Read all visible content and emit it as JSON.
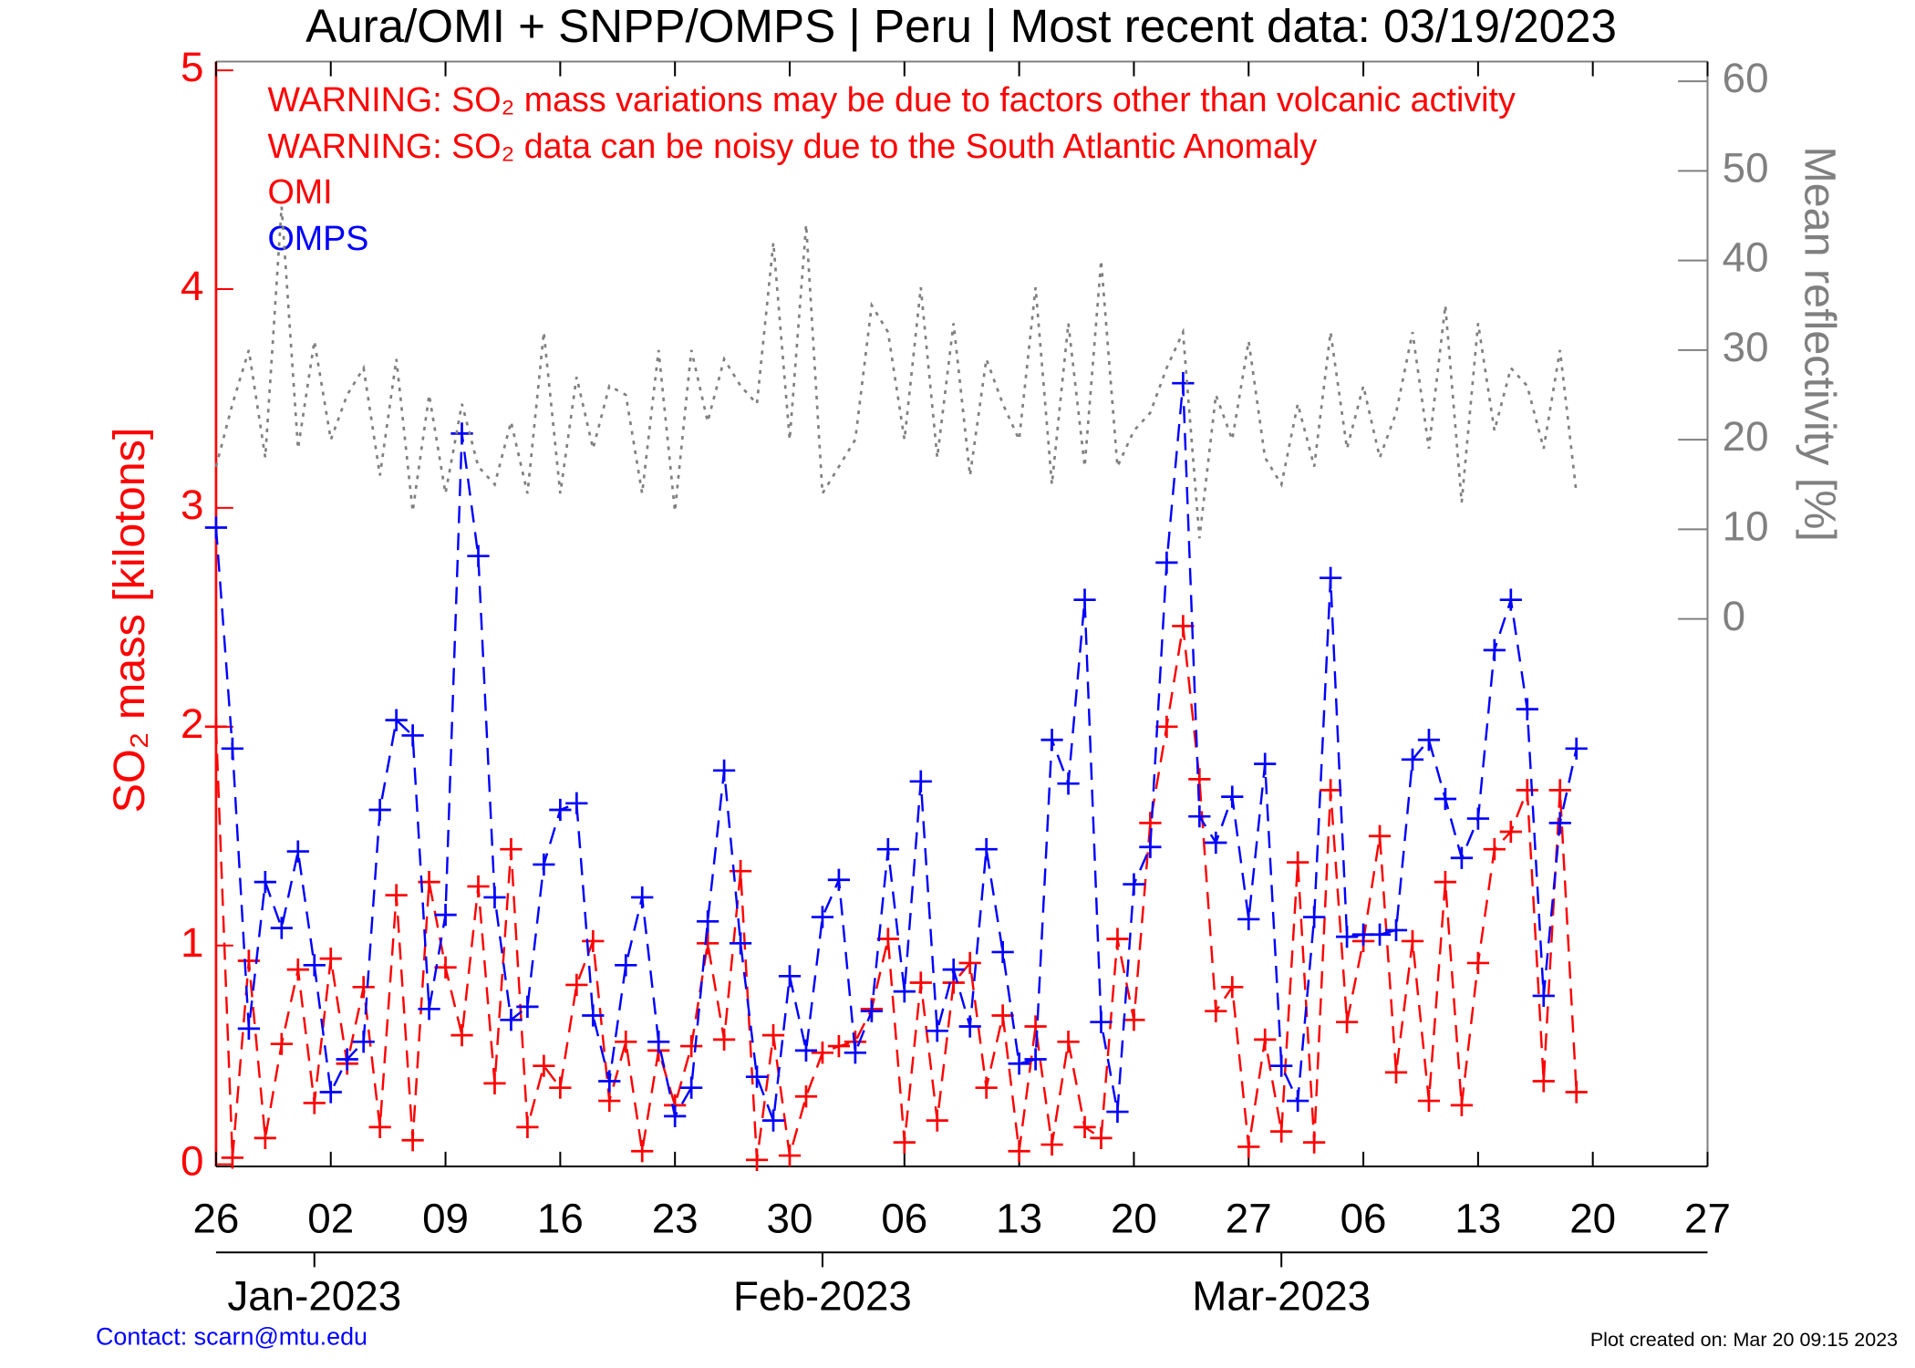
{
  "chart_data": {
    "type": "line",
    "title": "Aura/OMI + SNPP/OMPS | Peru | Most recent data: 03/19/2023",
    "warnings": [
      "WARNING: SO₂ mass variations may be due to factors other than volcanic activity",
      "WARNING: SO₂ data can be noisy due to the South Atlantic Anomaly"
    ],
    "y_label": "SO₂ mass [kilotons]",
    "y2_label": "Mean reflectivity [%]",
    "contact": "Contact: scarn@mtu.edu",
    "created": "Plot created on: Mar 20 09:15 2023",
    "x": [
      "2022-12-26",
      "2022-12-27",
      "2022-12-28",
      "2022-12-29",
      "2022-12-30",
      "2022-12-31",
      "2023-01-01",
      "2023-01-02",
      "2023-01-03",
      "2023-01-04",
      "2023-01-05",
      "2023-01-06",
      "2023-01-07",
      "2023-01-08",
      "2023-01-09",
      "2023-01-10",
      "2023-01-11",
      "2023-01-12",
      "2023-01-13",
      "2023-01-14",
      "2023-01-15",
      "2023-01-16",
      "2023-01-17",
      "2023-01-18",
      "2023-01-19",
      "2023-01-20",
      "2023-01-21",
      "2023-01-22",
      "2023-01-23",
      "2023-01-24",
      "2023-01-25",
      "2023-01-26",
      "2023-01-27",
      "2023-01-28",
      "2023-01-29",
      "2023-01-30",
      "2023-01-31",
      "2023-02-01",
      "2023-02-02",
      "2023-02-03",
      "2023-02-04",
      "2023-02-05",
      "2023-02-06",
      "2023-02-07",
      "2023-02-08",
      "2023-02-09",
      "2023-02-10",
      "2023-02-11",
      "2023-02-12",
      "2023-02-13",
      "2023-02-14",
      "2023-02-15",
      "2023-02-16",
      "2023-02-17",
      "2023-02-18",
      "2023-02-19",
      "2023-02-20",
      "2023-02-21",
      "2023-02-22",
      "2023-02-23",
      "2023-02-24",
      "2023-02-25",
      "2023-02-26",
      "2023-02-27",
      "2023-02-28",
      "2023-03-01",
      "2023-03-02",
      "2023-03-03",
      "2023-03-04",
      "2023-03-05",
      "2023-03-06",
      "2023-03-07",
      "2023-03-08",
      "2023-03-09",
      "2023-03-10",
      "2023-03-11",
      "2023-03-12",
      "2023-03-13",
      "2023-03-14",
      "2023-03-15",
      "2023-03-16",
      "2023-03-17",
      "2023-03-18",
      "2023-03-19"
    ],
    "series": [
      {
        "name": "OMI",
        "color": "#ff0000",
        "marker": "+",
        "style": "dashed",
        "values": [
          2.0,
          0.03,
          0.93,
          0.12,
          0.55,
          0.89,
          0.28,
          0.94,
          0.46,
          0.81,
          0.17,
          1.23,
          0.11,
          1.29,
          0.9,
          0.59,
          1.27,
          0.37,
          1.44,
          0.17,
          0.45,
          0.35,
          0.82,
          1.02,
          0.29,
          0.56,
          0.06,
          0.52,
          0.27,
          0.54,
          1.01,
          0.57,
          1.34,
          0.02,
          0.59,
          0.04,
          0.31,
          0.51,
          0.54,
          0.56,
          0.71,
          1.03,
          0.1,
          0.83,
          0.2,
          0.83,
          0.92,
          0.35,
          0.68,
          0.06,
          0.63,
          0.09,
          0.56,
          0.17,
          0.12,
          1.03,
          0.66,
          1.56,
          2.0,
          2.46,
          1.76,
          0.7,
          0.81,
          0.08,
          0.57,
          0.15,
          1.38,
          0.1,
          1.71,
          0.65,
          1.02,
          1.5,
          0.42,
          1.02,
          0.29,
          1.29,
          0.27,
          0.92,
          1.44,
          1.52,
          1.71,
          0.38,
          1.71,
          0.33
        ]
      },
      {
        "name": "OMPS",
        "color": "#0000ff",
        "marker": "+",
        "style": "dashed",
        "values": [
          2.91,
          1.9,
          0.62,
          1.29,
          1.08,
          1.43,
          0.91,
          0.33,
          0.48,
          0.56,
          1.62,
          2.03,
          1.96,
          0.71,
          1.14,
          3.34,
          2.78,
          1.22,
          0.66,
          0.72,
          1.37,
          1.62,
          1.65,
          0.68,
          0.38,
          0.91,
          1.22,
          0.56,
          0.22,
          0.35,
          1.11,
          1.8,
          1.01,
          0.4,
          0.2,
          0.86,
          0.52,
          1.13,
          1.3,
          0.51,
          0.7,
          1.44,
          0.79,
          1.75,
          0.61,
          0.89,
          0.63,
          1.44,
          0.97,
          0.46,
          0.48,
          1.94,
          1.74,
          2.58,
          0.65,
          0.24,
          1.28,
          1.45,
          2.75,
          3.57,
          1.59,
          1.47,
          1.68,
          1.12,
          1.83,
          0.45,
          0.29,
          1.13,
          2.68,
          1.04,
          1.05,
          1.05,
          1.07,
          1.85,
          1.94,
          1.67,
          1.4,
          1.58,
          2.35,
          2.58,
          2.08,
          0.77,
          1.56,
          1.9
        ]
      },
      {
        "color": "#808080",
        "axis": "y2",
        "style": "dotted",
        "values": [
          17,
          24,
          30,
          18,
          46,
          19,
          31,
          20,
          25,
          28,
          16,
          29,
          12,
          25,
          14,
          24,
          17,
          15,
          22,
          14,
          32,
          14,
          27,
          19,
          26,
          25,
          14,
          30,
          12,
          30,
          22,
          29,
          26,
          24,
          42,
          20,
          44,
          14,
          17,
          20,
          35,
          32,
          20,
          37,
          18,
          33,
          16,
          29,
          24,
          20,
          37,
          15,
          33,
          17,
          40,
          17,
          21,
          23,
          28,
          32,
          9,
          25,
          20,
          31,
          18,
          15,
          24,
          17,
          32,
          19,
          26,
          18,
          23,
          32,
          19,
          35,
          13,
          33,
          21,
          28,
          26,
          19,
          30,
          14
        ]
      }
    ],
    "xlim": [
      "2022-12-26",
      "2023-03-27"
    ],
    "xticks": [
      {
        "value": "2022-12-26",
        "label": "26"
      },
      {
        "value": "2023-01-02",
        "label": "02"
      },
      {
        "value": "2023-01-09",
        "label": "09"
      },
      {
        "value": "2023-01-16",
        "label": "16"
      },
      {
        "value": "2023-01-23",
        "label": "23"
      },
      {
        "value": "2023-01-30",
        "label": "30"
      },
      {
        "value": "2023-02-06",
        "label": "06"
      },
      {
        "value": "2023-02-13",
        "label": "13"
      },
      {
        "value": "2023-02-20",
        "label": "20"
      },
      {
        "value": "2023-02-27",
        "label": "27"
      },
      {
        "value": "2023-03-06",
        "label": "06"
      },
      {
        "value": "2023-03-13",
        "label": "13"
      },
      {
        "value": "2023-03-20",
        "label": "20"
      },
      {
        "value": "2023-03-27",
        "label": "27"
      }
    ],
    "month_ticks": [
      {
        "value": "2023-01-01",
        "label": "Jan-2023"
      },
      {
        "value": "2023-02-01",
        "label": "Feb-2023"
      },
      {
        "value": "2023-03-01",
        "label": "Mar-2023"
      }
    ],
    "ylim": [
      -0.01,
      5.04
    ],
    "yticks": [
      0,
      1,
      2,
      3,
      4,
      5
    ],
    "y_color": "#ff0000",
    "y2lim": [
      -61.1,
      62.2
    ],
    "y2ticks": [
      0,
      10,
      20,
      30,
      40,
      50,
      60
    ],
    "y2_color": "#808080",
    "grid": false
  }
}
